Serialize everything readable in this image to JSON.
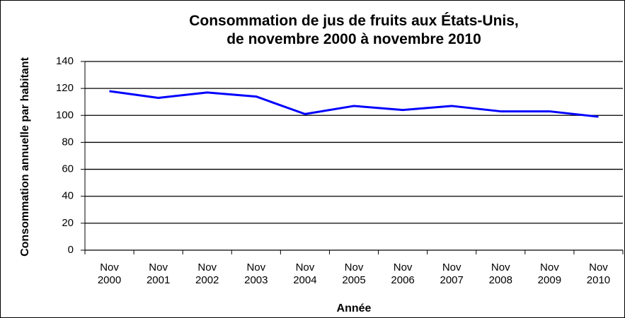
{
  "chart_data": {
    "type": "line",
    "title": [
      "Consommation de jus de fruits aux États-Unis,",
      "de novembre 2000 à novembre 2010"
    ],
    "y_label": "Consommation annuelle par habitant",
    "x_label": "Année",
    "categories": [
      "Nov 2000",
      "Nov 2001",
      "Nov 2002",
      "Nov 2003",
      "Nov 2004",
      "Nov 2005",
      "Nov 2006",
      "Nov 2007",
      "Nov 2008",
      "Nov 2009",
      "Nov 2010"
    ],
    "series": [
      {
        "color": "#0000ff",
        "values": [
          118,
          113,
          117,
          114,
          101,
          107,
          104,
          107,
          103,
          103,
          99
        ]
      }
    ],
    "ylim": [
      0,
      140
    ],
    "yticks": [
      0,
      20,
      40,
      60,
      80,
      100,
      120,
      140
    ],
    "grid": true
  }
}
